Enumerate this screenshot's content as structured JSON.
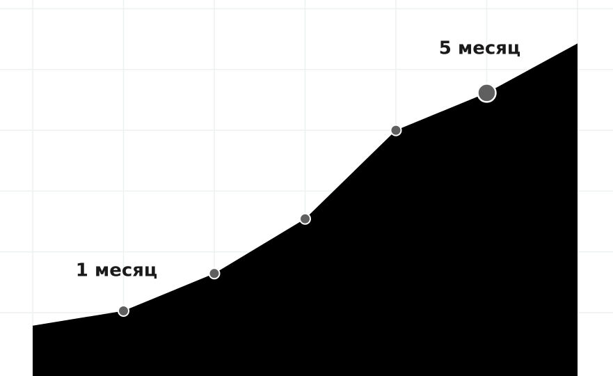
{
  "chart_data": {
    "type": "area",
    "x": [
      0,
      1,
      2,
      3,
      4,
      5,
      6
    ],
    "values": [
      0.55,
      0.72,
      1.15,
      1.78,
      2.8,
      3.23,
      3.8
    ],
    "xlim": [
      0,
      6
    ],
    "ylim": [
      -0.03,
      4.3
    ],
    "markers": [
      {
        "index": 1,
        "size": "small"
      },
      {
        "index": 2,
        "size": "small"
      },
      {
        "index": 3,
        "size": "small"
      },
      {
        "index": 4,
        "size": "small"
      },
      {
        "index": 5,
        "size": "large"
      }
    ],
    "annotations": [
      {
        "text": "1 месяц",
        "index": 1
      },
      {
        "text": "5 месяц",
        "index": 5
      }
    ],
    "grid": true,
    "colors": {
      "area": "#000000",
      "marker": "#5f5f5f",
      "marker_outline": "#ffffff",
      "grid": "#eef1f1",
      "text": "#1a1a1a"
    }
  }
}
